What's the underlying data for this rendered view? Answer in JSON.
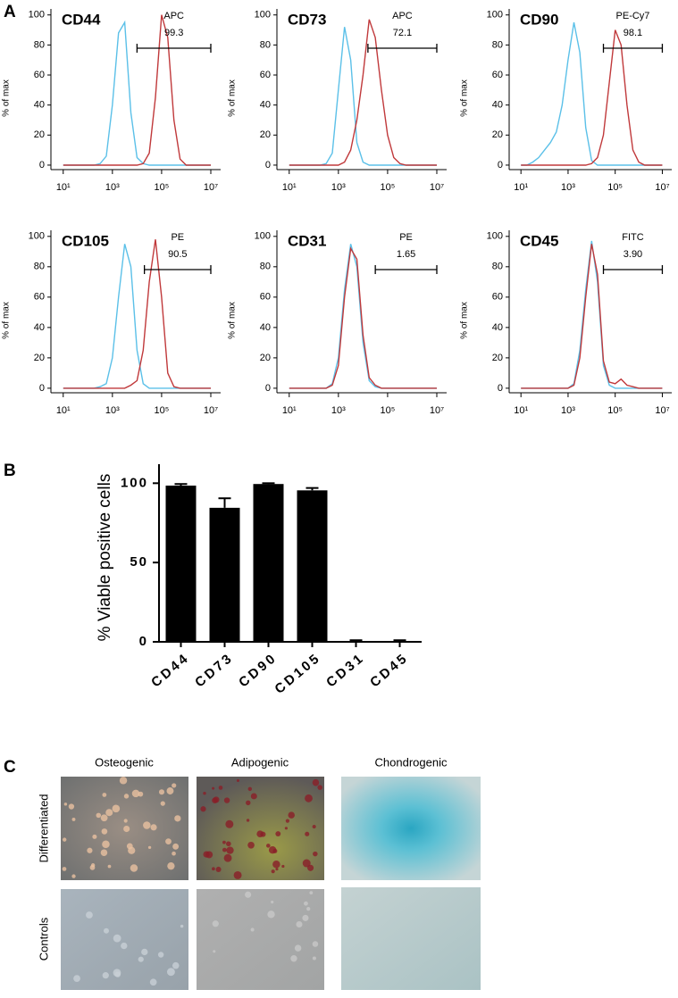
{
  "panel_labels": [
    "A",
    "B",
    "C"
  ],
  "chart_data": [
    {
      "type": "line",
      "title": "CD44",
      "ylabel": "% of max",
      "x": [
        1,
        1.25,
        1.5,
        1.75,
        2,
        2.25,
        2.5,
        2.75,
        3,
        3.25,
        3.5,
        3.75,
        4,
        4.25,
        4.5,
        4.75,
        5,
        5.25,
        5.5,
        5.75,
        6,
        6.25,
        6.5,
        6.75,
        7
      ],
      "series": [
        {
          "color": "#5bc0e8",
          "values": [
            0,
            0,
            0,
            0,
            0,
            0,
            1,
            6,
            40,
            88,
            95,
            35,
            5,
            1,
            0,
            0,
            0,
            0,
            0,
            0,
            0,
            0,
            0,
            0,
            0
          ]
        },
        {
          "color": "#c0393b",
          "values": [
            0,
            0,
            0,
            0,
            0,
            0,
            0,
            0,
            0,
            0,
            0,
            0,
            0,
            1,
            8,
            45,
            100,
            85,
            30,
            4,
            0,
            0,
            0,
            0,
            0
          ]
        }
      ],
      "gate": {
        "name": "APC",
        "value": 99.3,
        "value_label": "99.3",
        "range": [
          4.0,
          7.0
        ]
      },
      "xlim": [
        0.5,
        7.4
      ],
      "xticks": [
        {
          "value": 1,
          "label": "10¹"
        },
        {
          "value": 3,
          "label": "10³"
        },
        {
          "value": 5,
          "label": "10⁵"
        },
        {
          "value": 7,
          "label": "10⁷"
        }
      ],
      "ylim": [
        -3,
        104
      ],
      "yticks": [
        0,
        20,
        40,
        60,
        80,
        100
      ]
    },
    {
      "type": "line",
      "title": "CD73",
      "ylabel": "% of max",
      "x": [
        1,
        1.25,
        1.5,
        1.75,
        2,
        2.25,
        2.5,
        2.75,
        3,
        3.25,
        3.5,
        3.75,
        4,
        4.25,
        4.5,
        4.75,
        5,
        5.25,
        5.5,
        5.75,
        6,
        6.25,
        6.5,
        6.75,
        7
      ],
      "series": [
        {
          "color": "#5bc0e8",
          "values": [
            0,
            0,
            0,
            0,
            0,
            0,
            1,
            8,
            50,
            92,
            70,
            15,
            2,
            0,
            0,
            0,
            0,
            0,
            0,
            0,
            0,
            0,
            0,
            0,
            0
          ]
        },
        {
          "color": "#c0393b",
          "values": [
            0,
            0,
            0,
            0,
            0,
            0,
            0,
            0,
            0,
            2,
            10,
            30,
            60,
            97,
            85,
            50,
            20,
            5,
            1,
            0,
            0,
            0,
            0,
            0,
            0
          ]
        }
      ],
      "gate": {
        "name": "APC",
        "value": 72.1,
        "value_label": "72.1",
        "range": [
          4.2,
          7.0
        ]
      },
      "xlim": [
        0.5,
        7.4
      ],
      "xticks": [
        {
          "value": 1,
          "label": "10¹"
        },
        {
          "value": 3,
          "label": "10³"
        },
        {
          "value": 5,
          "label": "10⁵"
        },
        {
          "value": 7,
          "label": "10⁷"
        }
      ],
      "ylim": [
        -3,
        104
      ],
      "yticks": [
        0,
        20,
        40,
        60,
        80,
        100
      ]
    },
    {
      "type": "line",
      "title": "CD90",
      "ylabel": "% of max",
      "x": [
        1,
        1.25,
        1.5,
        1.75,
        2,
        2.25,
        2.5,
        2.75,
        3,
        3.25,
        3.5,
        3.75,
        4,
        4.25,
        4.5,
        4.75,
        5,
        5.25,
        5.5,
        5.75,
        6,
        6.25,
        6.5,
        6.75,
        7
      ],
      "series": [
        {
          "color": "#5bc0e8",
          "values": [
            0,
            0,
            2,
            5,
            10,
            15,
            22,
            40,
            70,
            95,
            75,
            25,
            3,
            0,
            0,
            0,
            0,
            0,
            0,
            0,
            0,
            0,
            0,
            0,
            0
          ]
        },
        {
          "color": "#c0393b",
          "values": [
            0,
            0,
            0,
            0,
            0,
            0,
            0,
            0,
            0,
            0,
            0,
            0,
            1,
            5,
            20,
            55,
            90,
            80,
            40,
            10,
            2,
            0,
            0,
            0,
            0
          ]
        }
      ],
      "gate": {
        "name": "PE-Cy7",
        "value": 98.1,
        "value_label": "98.1",
        "range": [
          4.5,
          7.0
        ]
      },
      "xlim": [
        0.5,
        7.4
      ],
      "xticks": [
        {
          "value": 1,
          "label": "10¹"
        },
        {
          "value": 3,
          "label": "10³"
        },
        {
          "value": 5,
          "label": "10⁵"
        },
        {
          "value": 7,
          "label": "10⁷"
        }
      ],
      "ylim": [
        -3,
        104
      ],
      "yticks": [
        0,
        20,
        40,
        60,
        80,
        100
      ]
    },
    {
      "type": "line",
      "title": "CD105",
      "ylabel": "% of max",
      "x": [
        1,
        1.25,
        1.5,
        1.75,
        2,
        2.25,
        2.5,
        2.75,
        3,
        3.25,
        3.5,
        3.75,
        4,
        4.25,
        4.5,
        4.75,
        5,
        5.25,
        5.5,
        5.75,
        6,
        6.25,
        6.5,
        6.75,
        7
      ],
      "series": [
        {
          "color": "#5bc0e8",
          "values": [
            0,
            0,
            0,
            0,
            0,
            0,
            1,
            3,
            20,
            60,
            95,
            80,
            25,
            3,
            0,
            0,
            0,
            0,
            0,
            0,
            0,
            0,
            0,
            0,
            0
          ]
        },
        {
          "color": "#c0393b",
          "values": [
            0,
            0,
            0,
            0,
            0,
            0,
            0,
            0,
            0,
            0,
            0,
            2,
            5,
            25,
            70,
            98,
            60,
            10,
            1,
            0,
            0,
            0,
            0,
            0,
            0
          ]
        }
      ],
      "gate": {
        "name": "PE",
        "value": 90.5,
        "value_label": "90.5",
        "range": [
          4.3,
          7.0
        ]
      },
      "xlim": [
        0.5,
        7.4
      ],
      "xticks": [
        {
          "value": 1,
          "label": "10¹"
        },
        {
          "value": 3,
          "label": "10³"
        },
        {
          "value": 5,
          "label": "10⁵"
        },
        {
          "value": 7,
          "label": "10⁷"
        }
      ],
      "ylim": [
        -3,
        104
      ],
      "yticks": [
        0,
        20,
        40,
        60,
        80,
        100
      ]
    },
    {
      "type": "line",
      "title": "CD31",
      "ylabel": "% of max",
      "x": [
        1,
        1.25,
        1.5,
        1.75,
        2,
        2.25,
        2.5,
        2.75,
        3,
        3.25,
        3.5,
        3.75,
        4,
        4.25,
        4.5,
        4.75,
        5,
        5.25,
        5.5,
        5.75,
        6,
        6.25,
        6.5,
        6.75,
        7
      ],
      "series": [
        {
          "color": "#5bc0e8",
          "values": [
            0,
            0,
            0,
            0,
            0,
            0,
            0,
            3,
            20,
            65,
            95,
            80,
            30,
            5,
            1,
            0,
            0,
            0,
            0,
            0,
            0,
            0,
            0,
            0,
            0
          ]
        },
        {
          "color": "#c0393b",
          "values": [
            0,
            0,
            0,
            0,
            0,
            0,
            0,
            2,
            15,
            60,
            92,
            85,
            35,
            7,
            2,
            0,
            0,
            0,
            0,
            0,
            0,
            0,
            0,
            0,
            0
          ]
        }
      ],
      "gate": {
        "name": "PE",
        "value": 1.65,
        "value_label": "1.65",
        "range": [
          4.5,
          7.0
        ]
      },
      "xlim": [
        0.5,
        7.4
      ],
      "xticks": [
        {
          "value": 1,
          "label": "10¹"
        },
        {
          "value": 3,
          "label": "10³"
        },
        {
          "value": 5,
          "label": "10⁵"
        },
        {
          "value": 7,
          "label": "10⁷"
        }
      ],
      "ylim": [
        -3,
        104
      ],
      "yticks": [
        0,
        20,
        40,
        60,
        80,
        100
      ]
    },
    {
      "type": "line",
      "title": "CD45",
      "ylabel": "% of max",
      "x": [
        1,
        1.25,
        1.5,
        1.75,
        2,
        2.25,
        2.5,
        2.75,
        3,
        3.25,
        3.5,
        3.75,
        4,
        4.25,
        4.5,
        4.75,
        5,
        5.25,
        5.5,
        5.75,
        6,
        6.25,
        6.5,
        6.75,
        7
      ],
      "series": [
        {
          "color": "#5bc0e8",
          "values": [
            0,
            0,
            0,
            0,
            0,
            0,
            0,
            0,
            0,
            3,
            25,
            65,
            97,
            70,
            15,
            2,
            0,
            0,
            0,
            0,
            0,
            0,
            0,
            0,
            0
          ]
        },
        {
          "color": "#c0393b",
          "values": [
            0,
            0,
            0,
            0,
            0,
            0,
            0,
            0,
            0,
            2,
            20,
            60,
            95,
            75,
            18,
            4,
            3,
            6,
            2,
            1,
            0,
            0,
            0,
            0,
            0
          ]
        }
      ],
      "gate": {
        "name": "FITC",
        "value": 3.9,
        "value_label": "3.90",
        "range": [
          4.5,
          7.0
        ]
      },
      "xlim": [
        0.5,
        7.4
      ],
      "xticks": [
        {
          "value": 1,
          "label": "10¹"
        },
        {
          "value": 3,
          "label": "10³"
        },
        {
          "value": 5,
          "label": "10⁵"
        },
        {
          "value": 7,
          "label": "10⁷"
        }
      ],
      "ylim": [
        -3,
        104
      ],
      "yticks": [
        0,
        20,
        40,
        60,
        80,
        100
      ]
    },
    {
      "type": "bar",
      "ylabel": "% Viable positive cells",
      "categories": [
        "CD44",
        "CD73",
        "CD90",
        "CD105",
        "CD31",
        "CD45"
      ],
      "values": [
        98.5,
        84.5,
        99.5,
        95.5,
        0.5,
        0.5
      ],
      "errors": [
        1,
        6,
        0.5,
        1.5,
        0.5,
        0.5
      ],
      "color": "#000000",
      "ylim": [
        0,
        112
      ],
      "yticks": [
        0,
        50,
        100
      ]
    }
  ],
  "images": {
    "columns": [
      "Osteogenic",
      "Adipogenic",
      "Chondrogenic"
    ],
    "rows": [
      "Differentiated",
      "Controls"
    ]
  }
}
